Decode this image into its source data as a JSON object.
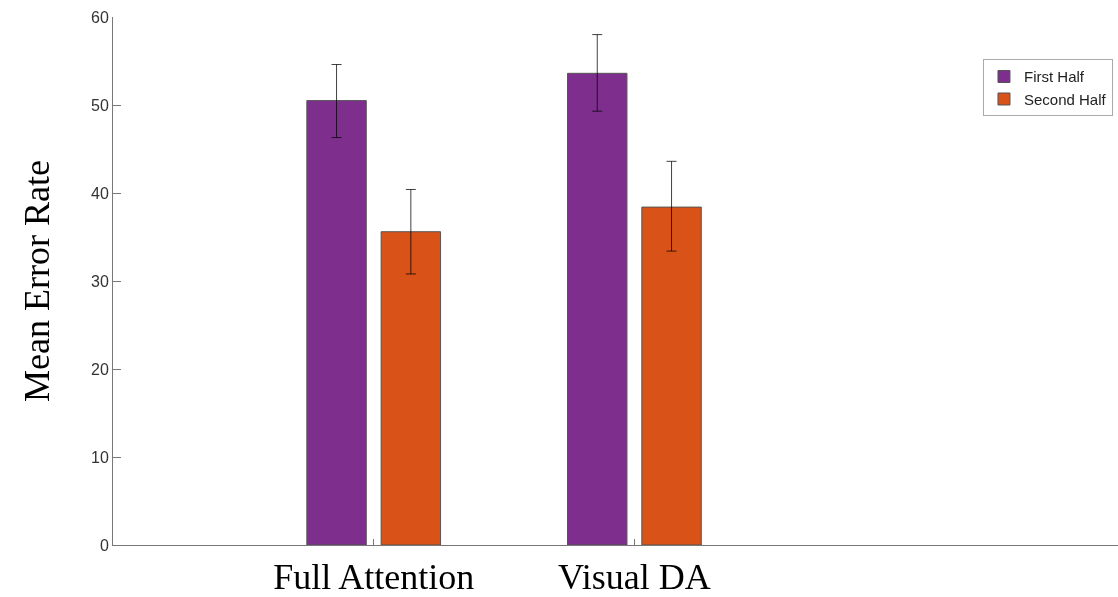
{
  "chart_data": {
    "type": "bar",
    "ylabel": "Mean Error Rate",
    "categories": [
      "Full Attention",
      "Visual DA"
    ],
    "series": [
      {
        "name": "First Half",
        "color": "#7e2f8e",
        "values": [
          50.5,
          53.6
        ],
        "errors": [
          [
            46.3,
            54.6
          ],
          [
            49.3,
            58.0
          ]
        ]
      },
      {
        "name": "Second Half",
        "color": "#d95319",
        "values": [
          35.6,
          38.4
        ],
        "errors": [
          [
            30.8,
            40.4
          ],
          [
            33.4,
            43.6
          ]
        ]
      }
    ],
    "ylim": [
      0,
      60
    ],
    "yticks": [
      0,
      10,
      20,
      30,
      40,
      50,
      60
    ],
    "legend": "top right"
  }
}
